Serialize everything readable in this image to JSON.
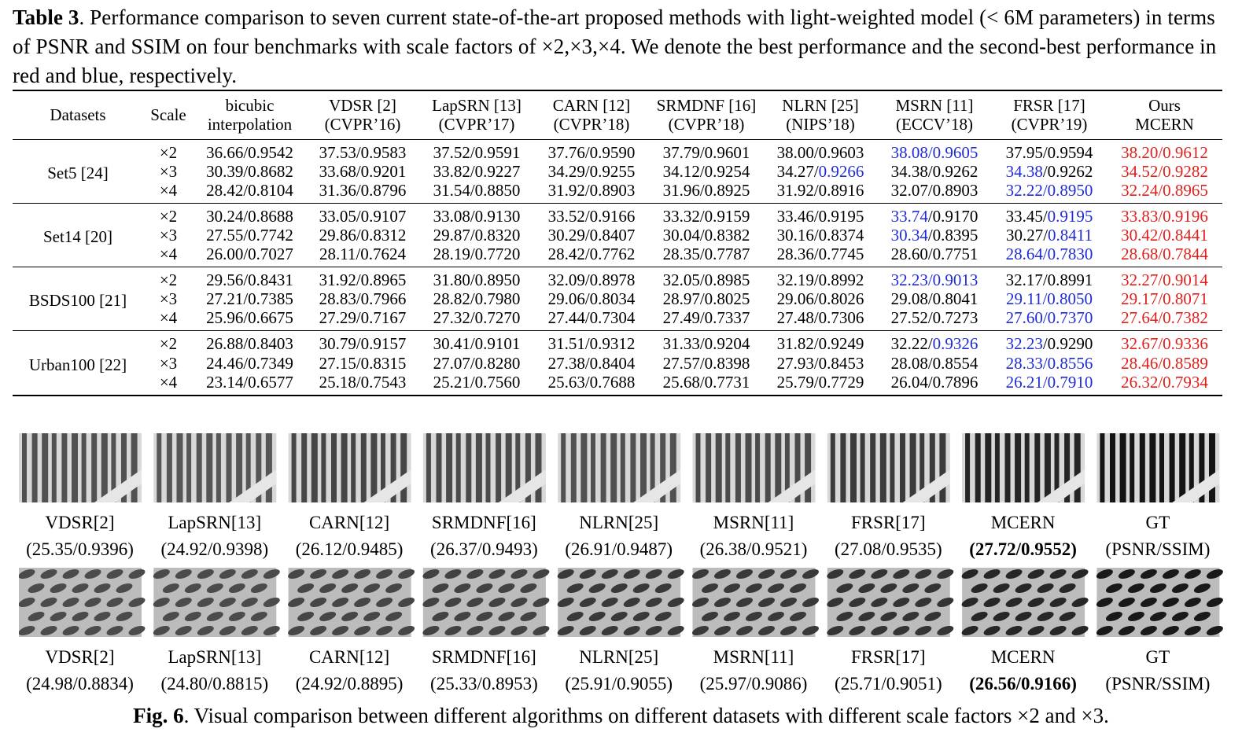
{
  "table_caption": {
    "label": "Table 3",
    "text": ". Performance comparison to seven current state-of-the-art proposed methods with light-weighted model (< 6M parameters) in terms of PSNR and SSIM on four benchmarks with scale factors of ×2,×3,×4. We denote the best performance and the second-best performance in red and blue, respectively."
  },
  "table": {
    "header": [
      {
        "l1": "Datasets",
        "l2": ""
      },
      {
        "l1": "Scale",
        "l2": ""
      },
      {
        "l1": "bicubic",
        "l2": "interpolation"
      },
      {
        "l1": "VDSR [2]",
        "l2": "(CVPR’16)"
      },
      {
        "l1": "LapSRN [13]",
        "l2": "(CVPR’17)"
      },
      {
        "l1": "CARN [12]",
        "l2": "(CVPR’18)"
      },
      {
        "l1": "SRMDNF [16]",
        "l2": "(CVPR’18)"
      },
      {
        "l1": "NLRN [25]",
        "l2": "(NIPS’18)"
      },
      {
        "l1": "MSRN [11]",
        "l2": "(ECCV’18)"
      },
      {
        "l1": "FRSR [17]",
        "l2": "(CVPR’19)"
      },
      {
        "l1": "Ours",
        "l2": "MCERN"
      }
    ],
    "groups": [
      {
        "dataset": "Set5 [24]",
        "rows": [
          {
            "scale": "×2",
            "cells": [
              {
                "p": "36.66",
                "s": "0.9542"
              },
              {
                "p": "37.53",
                "s": "0.9583"
              },
              {
                "p": "37.52",
                "s": "0.9591"
              },
              {
                "p": "37.76",
                "s": "0.9590"
              },
              {
                "p": "37.79",
                "s": "0.9601"
              },
              {
                "p": "38.00",
                "s": "0.9603"
              },
              {
                "p": "38.08",
                "s": "0.9605",
                "pc": "blue",
                "sc": "blue"
              },
              {
                "p": "37.95",
                "s": "0.9594"
              },
              {
                "p": "38.20",
                "s": "0.9612",
                "pc": "red",
                "sc": "red"
              }
            ]
          },
          {
            "scale": "×3",
            "cells": [
              {
                "p": "30.39",
                "s": "0.8682"
              },
              {
                "p": "33.68",
                "s": "0.9201"
              },
              {
                "p": "33.82",
                "s": "0.9227"
              },
              {
                "p": "34.29",
                "s": "0.9255"
              },
              {
                "p": "34.12",
                "s": "0.9254"
              },
              {
                "p": "34.27",
                "s": "0.9266",
                "sc": "blue"
              },
              {
                "p": "34.38",
                "s": "0.9262"
              },
              {
                "p": "34.38",
                "s": "0.9262",
                "pc": "blue"
              },
              {
                "p": "34.52",
                "s": "0.9282",
                "pc": "red",
                "sc": "red"
              }
            ]
          },
          {
            "scale": "×4",
            "cells": [
              {
                "p": "28.42",
                "s": "0.8104"
              },
              {
                "p": "31.36",
                "s": "0.8796"
              },
              {
                "p": "31.54",
                "s": "0.8850"
              },
              {
                "p": "31.92",
                "s": "0.8903"
              },
              {
                "p": "31.96",
                "s": "0.8925"
              },
              {
                "p": "31.92",
                "s": "0.8916"
              },
              {
                "p": "32.07",
                "s": "0.8903"
              },
              {
                "p": "32.22",
                "s": "0.8950",
                "pc": "blue",
                "sc": "blue"
              },
              {
                "p": "32.24",
                "s": "0.8965",
                "pc": "red",
                "sc": "red"
              }
            ]
          }
        ]
      },
      {
        "dataset": "Set14 [20]",
        "rows": [
          {
            "scale": "×2",
            "cells": [
              {
                "p": "30.24",
                "s": "0.8688"
              },
              {
                "p": "33.05",
                "s": "0.9107"
              },
              {
                "p": "33.08",
                "s": "0.9130"
              },
              {
                "p": "33.52",
                "s": "0.9166"
              },
              {
                "p": "33.32",
                "s": "0.9159"
              },
              {
                "p": "33.46",
                "s": "0.9195"
              },
              {
                "p": "33.74",
                "s": "0.9170",
                "pc": "blue"
              },
              {
                "p": "33.45",
                "s": "0.9195",
                "sc": "blue"
              },
              {
                "p": "33.83",
                "s": "0.9196",
                "pc": "red",
                "sc": "red"
              }
            ]
          },
          {
            "scale": "×3",
            "cells": [
              {
                "p": "27.55",
                "s": "0.7742"
              },
              {
                "p": "29.86",
                "s": "0.8312"
              },
              {
                "p": "29.87",
                "s": "0.8320"
              },
              {
                "p": "30.29",
                "s": "0.8407"
              },
              {
                "p": "30.04",
                "s": "0.8382"
              },
              {
                "p": "30.16",
                "s": "0.8374"
              },
              {
                "p": "30.34",
                "s": "0.8395",
                "pc": "blue"
              },
              {
                "p": "30.27",
                "s": "0.8411",
                "sc": "blue"
              },
              {
                "p": "30.42",
                "s": "0.8441",
                "pc": "red",
                "sc": "red"
              }
            ]
          },
          {
            "scale": "×4",
            "cells": [
              {
                "p": "26.00",
                "s": "0.7027"
              },
              {
                "p": "28.11",
                "s": "0.7624"
              },
              {
                "p": "28.19",
                "s": "0.7720"
              },
              {
                "p": "28.42",
                "s": "0.7762"
              },
              {
                "p": "28.35",
                "s": "0.7787"
              },
              {
                "p": "28.36",
                "s": "0.7745"
              },
              {
                "p": "28.60",
                "s": "0.7751"
              },
              {
                "p": "28.64",
                "s": "0.7830",
                "pc": "blue",
                "sc": "blue"
              },
              {
                "p": "28.68",
                "s": "0.7844",
                "pc": "red",
                "sc": "red"
              }
            ]
          }
        ]
      },
      {
        "dataset": "BSDS100 [21]",
        "rows": [
          {
            "scale": "×2",
            "cells": [
              {
                "p": "29.56",
                "s": "0.8431"
              },
              {
                "p": "31.92",
                "s": "0.8965"
              },
              {
                "p": "31.80",
                "s": "0.8950"
              },
              {
                "p": "32.09",
                "s": "0.8978"
              },
              {
                "p": "32.05",
                "s": "0.8985"
              },
              {
                "p": "32.19",
                "s": "0.8992"
              },
              {
                "p": "32.23",
                "s": "0.9013",
                "pc": "blue",
                "sc": "blue"
              },
              {
                "p": "32.17",
                "s": "0.8991"
              },
              {
                "p": "32.27",
                "s": "0.9014",
                "pc": "red",
                "sc": "red"
              }
            ]
          },
          {
            "scale": "×3",
            "cells": [
              {
                "p": "27.21",
                "s": "0.7385"
              },
              {
                "p": "28.83",
                "s": "0.7966"
              },
              {
                "p": "28.82",
                "s": "0.7980"
              },
              {
                "p": "29.06",
                "s": "0.8034"
              },
              {
                "p": "28.97",
                "s": "0.8025"
              },
              {
                "p": "29.06",
                "s": "0.8026"
              },
              {
                "p": "29.08",
                "s": "0.8041"
              },
              {
                "p": "29.11",
                "s": "0.8050",
                "pc": "blue",
                "sc": "blue"
              },
              {
                "p": "29.17",
                "s": "0.8071",
                "pc": "red",
                "sc": "red"
              }
            ]
          },
          {
            "scale": "×4",
            "cells": [
              {
                "p": "25.96",
                "s": "0.6675"
              },
              {
                "p": "27.29",
                "s": "0.7167"
              },
              {
                "p": "27.32",
                "s": "0.7270"
              },
              {
                "p": "27.44",
                "s": "0.7304"
              },
              {
                "p": "27.49",
                "s": "0.7337"
              },
              {
                "p": "27.48",
                "s": "0.7306"
              },
              {
                "p": "27.52",
                "s": "0.7273"
              },
              {
                "p": "27.60",
                "s": "0.7370",
                "pc": "blue",
                "sc": "blue"
              },
              {
                "p": "27.64",
                "s": "0.7382",
                "pc": "red",
                "sc": "red"
              }
            ]
          }
        ]
      },
      {
        "dataset": "Urban100 [22]",
        "rows": [
          {
            "scale": "×2",
            "cells": [
              {
                "p": "26.88",
                "s": "0.8403"
              },
              {
                "p": "30.79",
                "s": "0.9157"
              },
              {
                "p": "30.41",
                "s": "0.9101"
              },
              {
                "p": "31.51",
                "s": "0.9312"
              },
              {
                "p": "31.33",
                "s": "0.9204"
              },
              {
                "p": "31.82",
                "s": "0.9249"
              },
              {
                "p": "32.22",
                "s": "0.9326",
                "sc": "blue"
              },
              {
                "p": "32.23",
                "s": "0.9290",
                "pc": "blue"
              },
              {
                "p": "32.67",
                "s": "0.9336",
                "pc": "red",
                "sc": "red"
              }
            ]
          },
          {
            "scale": "×3",
            "cells": [
              {
                "p": "24.46",
                "s": "0.7349"
              },
              {
                "p": "27.15",
                "s": "0.8315"
              },
              {
                "p": "27.07",
                "s": "0.8280"
              },
              {
                "p": "27.38",
                "s": "0.8404"
              },
              {
                "p": "27.57",
                "s": "0.8398"
              },
              {
                "p": "27.93",
                "s": "0.8453"
              },
              {
                "p": "28.08",
                "s": "0.8554"
              },
              {
                "p": "28.33",
                "s": "0.8556",
                "pc": "blue",
                "sc": "blue"
              },
              {
                "p": "28.46",
                "s": "0.8589",
                "pc": "red",
                "sc": "red"
              }
            ]
          },
          {
            "scale": "×4",
            "cells": [
              {
                "p": "23.14",
                "s": "0.6577"
              },
              {
                "p": "25.18",
                "s": "0.7543"
              },
              {
                "p": "25.21",
                "s": "0.7560"
              },
              {
                "p": "25.63",
                "s": "0.7688"
              },
              {
                "p": "25.68",
                "s": "0.7731"
              },
              {
                "p": "25.79",
                "s": "0.7729"
              },
              {
                "p": "26.04",
                "s": "0.7896"
              },
              {
                "p": "26.21",
                "s": "0.7910",
                "pc": "blue",
                "sc": "blue"
              },
              {
                "p": "26.32",
                "s": "0.7934",
                "pc": "red",
                "sc": "red"
              }
            ]
          }
        ]
      }
    ]
  },
  "figure": {
    "row1": [
      {
        "name": "VDSR[2]",
        "value": "(25.35/0.9396)"
      },
      {
        "name": "LapSRN[13]",
        "value": "(24.92/0.9398)"
      },
      {
        "name": "CARN[12]",
        "value": "(26.12/0.9485)"
      },
      {
        "name": "SRMDNF[16]",
        "value": "(26.37/0.9493)"
      },
      {
        "name": "NLRN[25]",
        "value": "(26.91/0.9487)"
      },
      {
        "name": "MSRN[11]",
        "value": "(26.38/0.9521)"
      },
      {
        "name": "FRSR[17]",
        "value": "(27.08/0.9535)"
      },
      {
        "name": "MCERN",
        "value": "(27.72/0.9552)",
        "best": true
      },
      {
        "name": "GT",
        "value": "(PSNR/SSIM)"
      }
    ],
    "row2": [
      {
        "name": "VDSR[2]",
        "value": "(24.98/0.8834)"
      },
      {
        "name": "LapSRN[13]",
        "value": "(24.80/0.8815)"
      },
      {
        "name": "CARN[12]",
        "value": "(24.92/0.8895)"
      },
      {
        "name": "SRMDNF[16]",
        "value": "(25.33/0.8953)"
      },
      {
        "name": "NLRN[25]",
        "value": "(25.91/0.9055)"
      },
      {
        "name": "MSRN[11]",
        "value": "(25.97/0.9086)"
      },
      {
        "name": "FRSR[17]",
        "value": "(25.71/0.9051)"
      },
      {
        "name": "MCERN",
        "value": "(26.56/0.9166)",
        "best": true
      },
      {
        "name": "GT",
        "value": "(PSNR/SSIM)"
      }
    ],
    "caption_label": "Fig. 6",
    "caption_text": ". Visual comparison between different algorithms on different datasets with different scale factors ×2 and ×3."
  }
}
